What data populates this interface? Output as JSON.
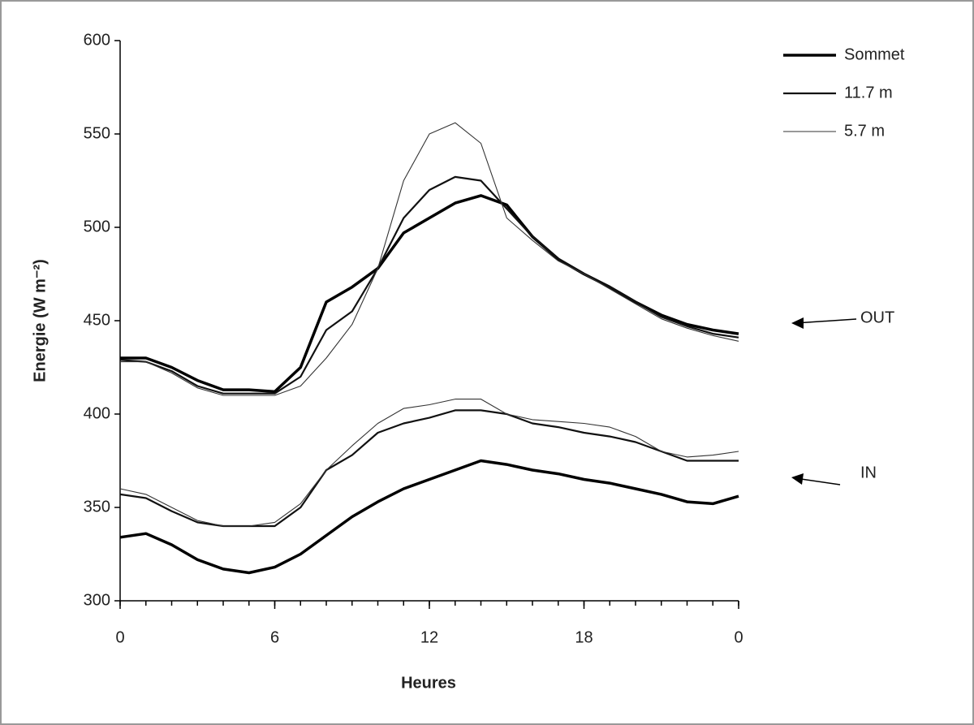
{
  "chart_data": {
    "type": "line",
    "ylabel": "Energie (W m⁻²)",
    "xlabel": "Heures",
    "x": [
      0,
      1,
      2,
      3,
      4,
      5,
      6,
      7,
      8,
      9,
      10,
      11,
      12,
      13,
      14,
      15,
      16,
      17,
      18,
      19,
      20,
      21,
      22,
      23,
      24
    ],
    "xlim": [
      0,
      24
    ],
    "xticks": [
      0,
      6,
      12,
      18,
      {
        "value": 24,
        "label": "0"
      }
    ],
    "ylim": [
      300,
      600
    ],
    "yticks": [
      300,
      350,
      400,
      450,
      500,
      550,
      600
    ],
    "annotations": [
      "OUT",
      "IN"
    ],
    "series": [
      {
        "name": "Sommet",
        "color": "#000000",
        "width": 3.5,
        "values_out": [
          430,
          430,
          425,
          418,
          413,
          413,
          412,
          425,
          460,
          468,
          478,
          497,
          505,
          513,
          517,
          512,
          495,
          483,
          475,
          468,
          460,
          453,
          448,
          445,
          443
        ],
        "values_in": [
          334,
          336,
          330,
          322,
          317,
          315,
          318,
          325,
          335,
          345,
          353,
          360,
          365,
          370,
          375,
          373,
          370,
          368,
          365,
          363,
          360,
          357,
          353,
          352,
          356
        ]
      },
      {
        "name": "11.7 m",
        "color": "#111111",
        "width": 2.2,
        "values_out": [
          429,
          428,
          423,
          415,
          411,
          411,
          411,
          420,
          445,
          455,
          478,
          505,
          520,
          527,
          525,
          510,
          495,
          483,
          475,
          468,
          460,
          452,
          447,
          443,
          441
        ],
        "values_in": [
          357,
          355,
          348,
          342,
          340,
          340,
          340,
          350,
          370,
          378,
          390,
          395,
          398,
          402,
          402,
          400,
          395,
          393,
          390,
          388,
          385,
          380,
          375,
          375,
          375
        ]
      },
      {
        "name": "5.7 m",
        "color": "#333333",
        "width": 1.1,
        "values_out": [
          428,
          428,
          422,
          414,
          410,
          410,
          410,
          415,
          430,
          448,
          478,
          525,
          550,
          556,
          545,
          505,
          493,
          482,
          475,
          467,
          459,
          451,
          446,
          442,
          439
        ],
        "values_in": [
          360,
          357,
          350,
          343,
          340,
          340,
          342,
          352,
          370,
          383,
          395,
          403,
          405,
          408,
          408,
          400,
          397,
          396,
          395,
          393,
          388,
          380,
          377,
          378,
          380
        ]
      }
    ]
  }
}
